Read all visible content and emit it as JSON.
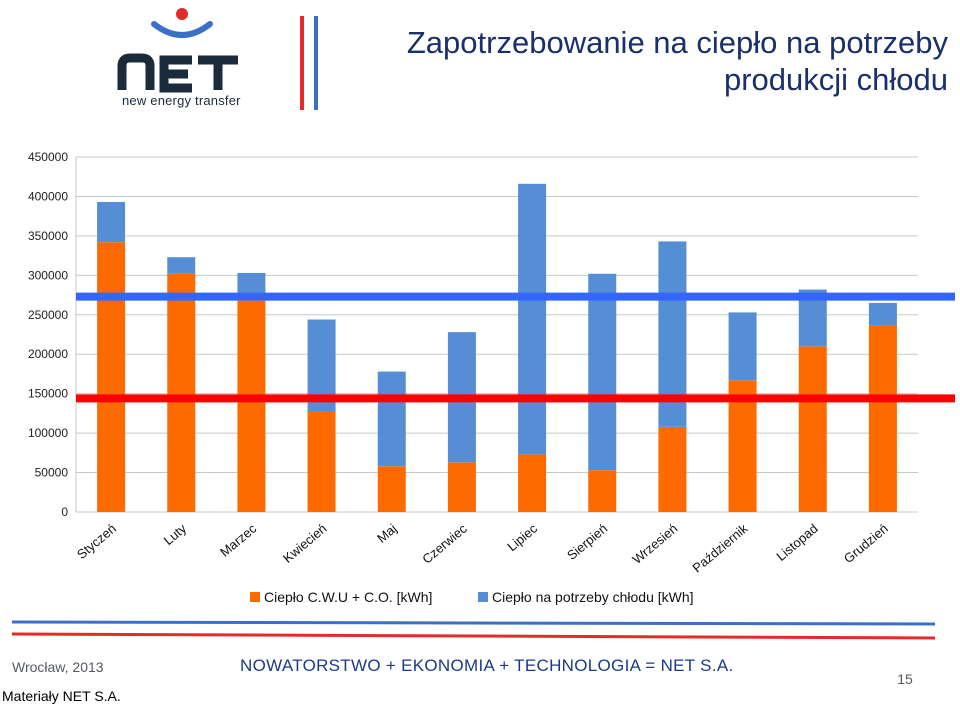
{
  "header": {
    "brand_sub": "new energy transfer",
    "title_line1": "Zapotrzebowanie na ciepło na potrzeby",
    "title_line2": "produkcji chłodu"
  },
  "colors": {
    "orange": "#ff6a00",
    "blue": "#558ed5",
    "red_line": "#ff0000",
    "blue_line": "#3366ff",
    "logo_red": "#e52a2a",
    "logo_blue": "#3a70c8",
    "logo_dark": "#1a2b3c"
  },
  "icons": {
    "logo": "net-logo-icon"
  },
  "chart_data": {
    "type": "bar",
    "stacked": true,
    "categories": [
      "Styczeń",
      "Luty",
      "Marzec",
      "Kwiecień",
      "Maj",
      "Czerwiec",
      "Lipiec",
      "Sierpień",
      "Wrzesień",
      "Październik",
      "Listopad",
      "Grudzień"
    ],
    "series": [
      {
        "name": "Ciepło C.W.U + C.O. [kWh]",
        "color": "#ff6a00",
        "values": [
          342000,
          302000,
          268000,
          128000,
          58000,
          63000,
          73000,
          53000,
          108000,
          167000,
          210000,
          236000
        ]
      },
      {
        "name": "Ciepło na potrzeby chłodu [kWh]",
        "color": "#558ed5",
        "values": [
          51000,
          21000,
          35000,
          116000,
          120000,
          165000,
          343000,
          249000,
          235000,
          86000,
          72000,
          29000
        ]
      }
    ],
    "reference_lines": [
      {
        "value": 273000,
        "color": "#3366ff"
      },
      {
        "value": 144000,
        "color": "#ff0000"
      }
    ],
    "yticks": [
      "0",
      "50000",
      "100000",
      "150000",
      "200000",
      "250000",
      "300000",
      "350000",
      "400000",
      "450000"
    ],
    "ylim": [
      0,
      450000
    ],
    "grid": true,
    "legend_position": "bottom"
  },
  "footer": {
    "left": "Wrocław, 2013",
    "center": "NOWATORSTWO + EKONOMIA + TECHNOLOGIA = NET S.A.",
    "page": "15",
    "credit": "Materiały NET S.A."
  }
}
